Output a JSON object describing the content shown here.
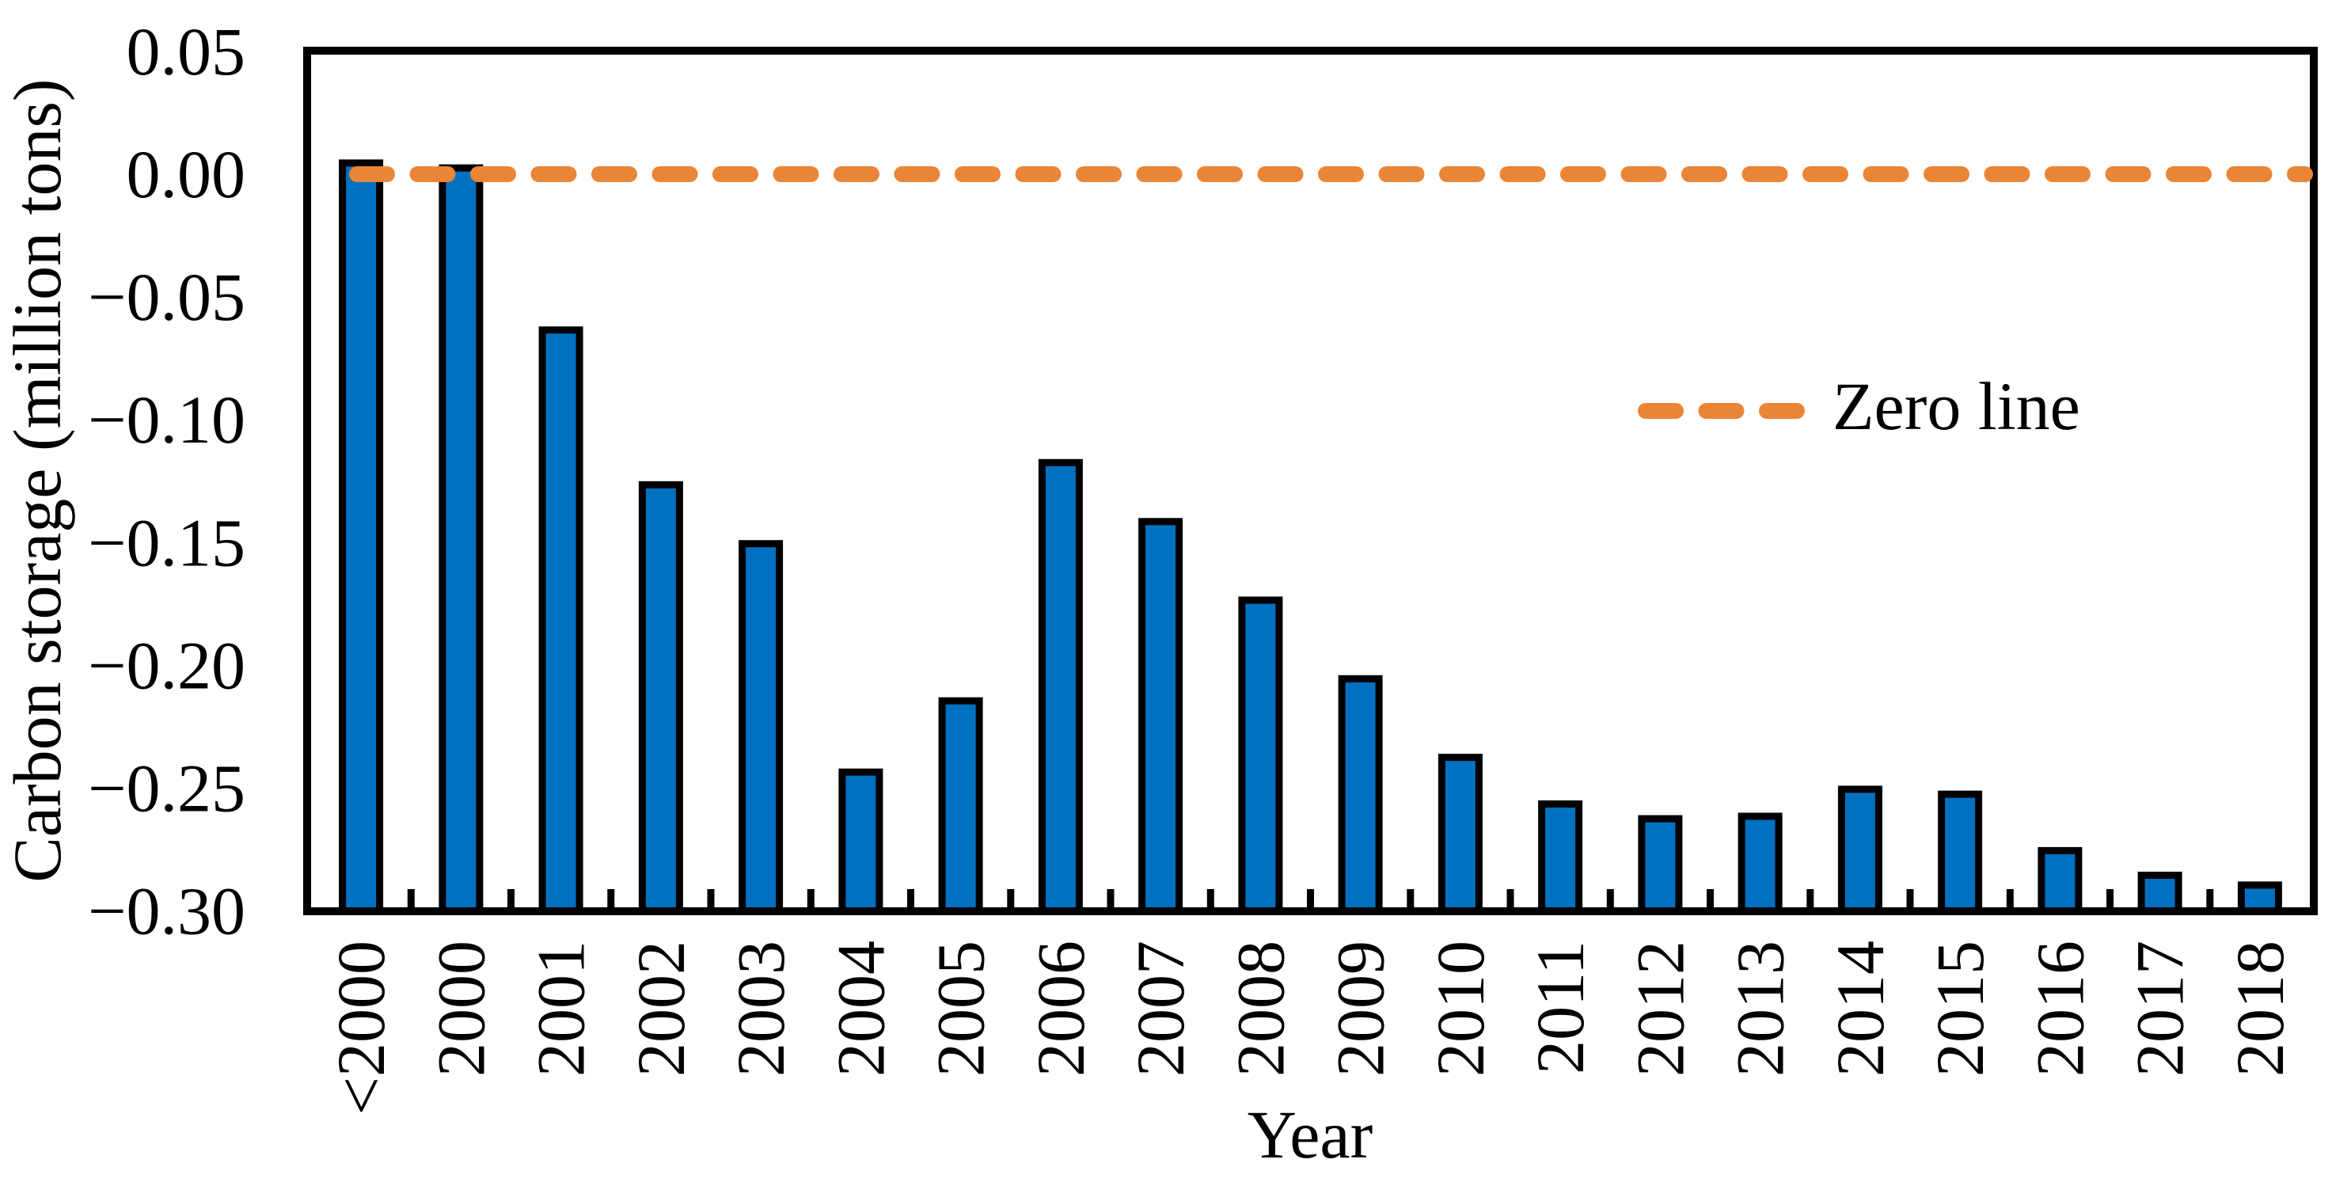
{
  "chart_data": {
    "type": "bar",
    "title": "",
    "xlabel": "Year",
    "ylabel": "Carbon storage (million tons)",
    "categories": [
      "<2000",
      "2000",
      "2001",
      "2002",
      "2003",
      "2004",
      "2005",
      "2006",
      "2007",
      "2008",
      "2009",
      "2010",
      "2011",
      "2012",
      "2013",
      "2014",
      "2015",
      "2016",
      "2017",
      "2018"
    ],
    "values": [
      0.006,
      0.004,
      -0.062,
      -0.125,
      -0.149,
      -0.242,
      -0.213,
      -0.116,
      -0.14,
      -0.172,
      -0.204,
      -0.236,
      -0.255,
      -0.261,
      -0.26,
      -0.249,
      -0.251,
      -0.274,
      -0.284,
      -0.288
    ],
    "ylim": [
      -0.3,
      0.05
    ],
    "ytick_step": 0.05,
    "ytick_labels": [
      "0.05",
      "0.00",
      "−0.05",
      "−0.10",
      "−0.15",
      "−0.20",
      "−0.25",
      "−0.30"
    ],
    "grid": false,
    "legend": {
      "position": "middle-right",
      "label": "Zero line",
      "marker": "dashed-line"
    },
    "zero_line": {
      "value": 0.0,
      "style": "dashed",
      "color": "#EB8536"
    },
    "colors": {
      "bar_fill": "#0070C0",
      "bar_stroke": "#000000",
      "axis_stroke": "#000000",
      "zero_line": "#EB8536",
      "background": "#FFFFFF",
      "text": "#000000"
    }
  }
}
